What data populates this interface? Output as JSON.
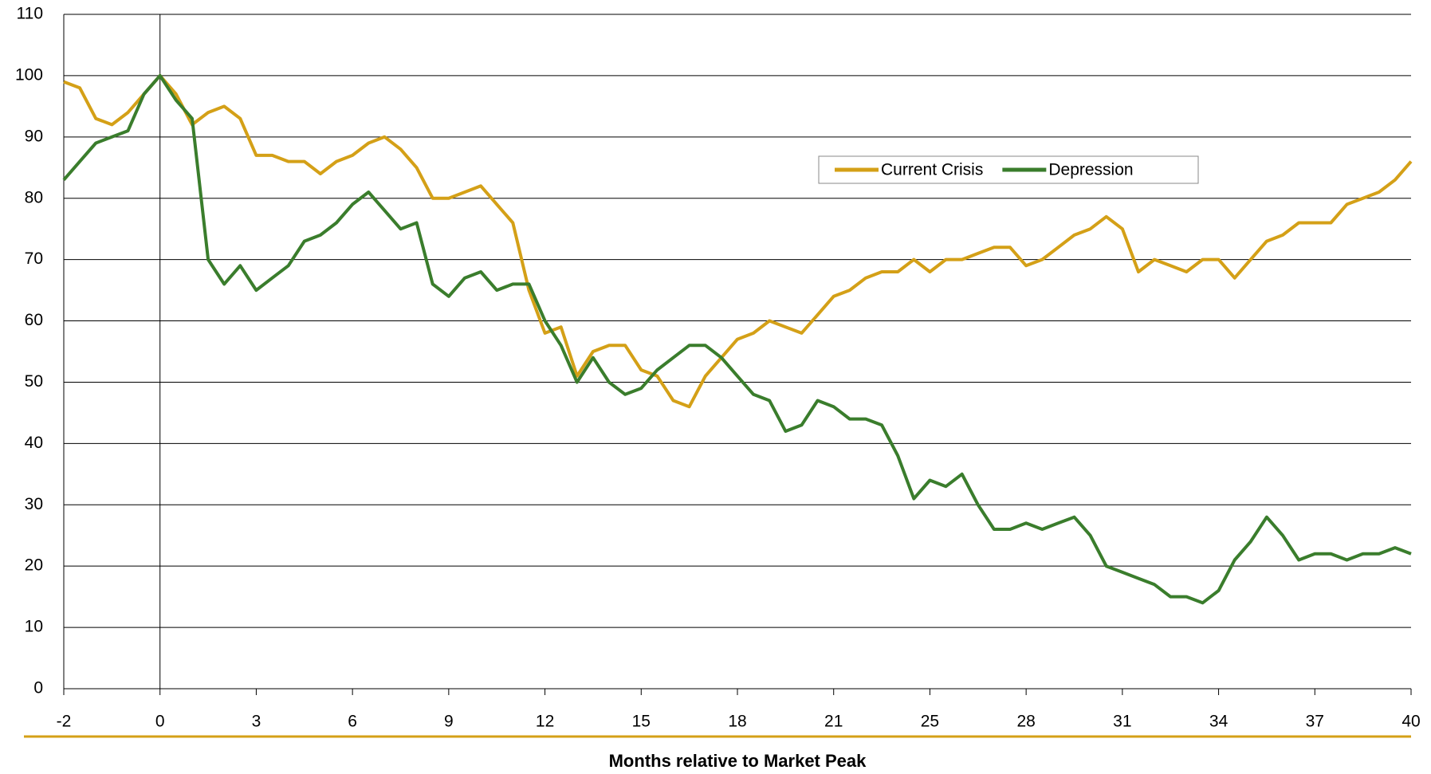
{
  "chart_data": {
    "type": "line",
    "x_label": "Months relative to Market Peak",
    "x": [
      -2,
      -1.5,
      -1,
      -0.5,
      0,
      0.5,
      1,
      1.5,
      2,
      2.5,
      3,
      3.5,
      4,
      4.5,
      5,
      5.5,
      6,
      6.5,
      7,
      7.5,
      8,
      8.5,
      9,
      9.5,
      10,
      10.5,
      11,
      11.5,
      12,
      12.5,
      13,
      13.5,
      14,
      14.5,
      15,
      15.5,
      16,
      16.5,
      17,
      17.5,
      18,
      18.5,
      19,
      19.5,
      20,
      20.5,
      21,
      21.5,
      22,
      22.5,
      23,
      23.5,
      24,
      24.5,
      25,
      25.5,
      26,
      26.5,
      27,
      27.5,
      28,
      28.5,
      29,
      29.5,
      30,
      30.5,
      31,
      31.5,
      32,
      32.5,
      33,
      33.5,
      34,
      34.5,
      35,
      35.5,
      36,
      36.5,
      37,
      37.5,
      38,
      38.5,
      39,
      39.5,
      40
    ],
    "series": [
      {
        "name": "Current Crisis",
        "color": "#d4a017",
        "values": [
          99,
          98,
          93,
          92,
          94,
          97,
          100,
          97,
          92,
          94,
          95,
          93,
          87,
          87,
          86,
          86,
          84,
          86,
          87,
          89,
          90,
          88,
          85,
          80,
          80,
          81,
          82,
          79,
          76,
          65,
          58,
          59,
          51,
          55,
          56,
          56,
          52,
          51,
          47,
          46,
          51,
          54,
          57,
          58,
          60,
          59,
          58,
          61,
          64,
          65,
          67,
          68,
          68,
          70,
          68,
          70,
          70,
          71,
          72,
          72,
          69,
          70,
          72,
          74,
          75,
          77,
          75,
          68,
          70,
          69,
          68,
          70,
          70,
          67,
          70,
          73,
          74,
          76,
          76,
          76,
          79,
          80,
          81,
          83,
          86
        ]
      },
      {
        "name": "Depression",
        "color": "#3a7d2c",
        "values": [
          83,
          86,
          89,
          90,
          91,
          97,
          100,
          96,
          93,
          70,
          66,
          69,
          65,
          67,
          69,
          73,
          74,
          76,
          79,
          81,
          78,
          75,
          76,
          66,
          64,
          67,
          68,
          65,
          66,
          66,
          60,
          56,
          50,
          54,
          50,
          48,
          49,
          52,
          54,
          56,
          56,
          54,
          51,
          48,
          47,
          42,
          43,
          47,
          46,
          44,
          44,
          43,
          38,
          31,
          34,
          33,
          35,
          30,
          26,
          26,
          27,
          26,
          27,
          28,
          25,
          20,
          19,
          18,
          17,
          15,
          15,
          14,
          16,
          21,
          24,
          28,
          25,
          21,
          22,
          22,
          21,
          22,
          22,
          23,
          22
        ]
      }
    ],
    "xlim": [
      -2,
      40
    ],
    "xticks": [
      -2,
      {
        "value": 1,
        "label": "0"
      },
      {
        "value": 4,
        "label": "3"
      },
      {
        "value": 7,
        "label": "6"
      },
      {
        "value": 10,
        "label": "9"
      },
      {
        "value": 13,
        "label": "12"
      },
      {
        "value": 16,
        "label": "15"
      },
      {
        "value": 19,
        "label": "18"
      },
      {
        "value": 22,
        "label": "21"
      },
      25,
      28,
      31,
      34,
      37,
      40
    ],
    "ylim": [
      0,
      110
    ],
    "yticks": [
      0,
      10,
      20,
      30,
      40,
      50,
      60,
      70,
      80,
      90,
      100,
      110
    ],
    "grid": true,
    "legend": "upper-right"
  }
}
